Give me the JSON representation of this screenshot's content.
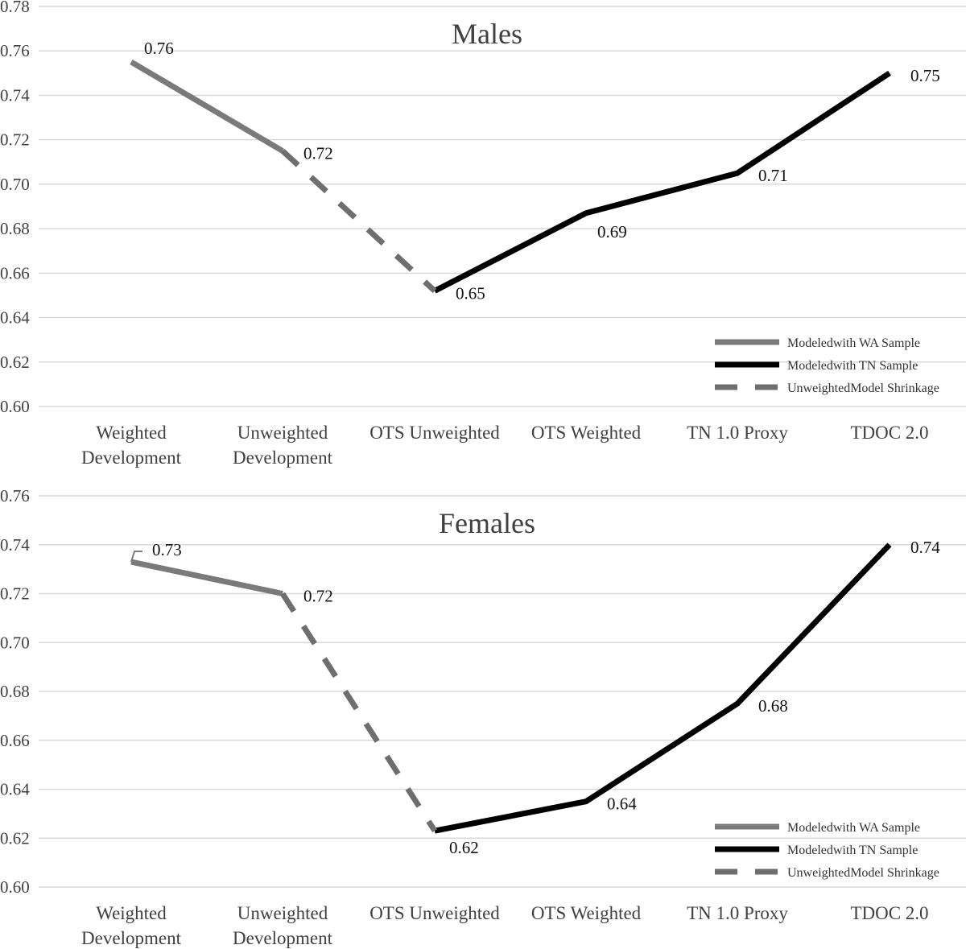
{
  "chart_data": [
    {
      "type": "line",
      "title": "Males",
      "categories": [
        [
          "Weighted",
          "Development"
        ],
        [
          "Unweighted",
          "Development"
        ],
        [
          "OTS Unweighted"
        ],
        [
          "OTS Weighted"
        ],
        [
          "TN 1.0 Proxy"
        ],
        [
          "TDOC 2.0"
        ]
      ],
      "values": [
        0.755,
        0.715,
        0.652,
        0.687,
        0.705,
        0.75
      ],
      "data_labels": [
        "0.76",
        "0.72",
        "0.65",
        "0.69",
        "0.71",
        "0.75"
      ],
      "ylim": [
        0.6,
        0.78
      ],
      "yticks": [
        "0.60",
        "0.62",
        "0.64",
        "0.66",
        "0.68",
        "0.70",
        "0.72",
        "0.74",
        "0.76",
        "0.78"
      ],
      "grid": true,
      "legend_position": "bottom-right",
      "series": [
        {
          "name": "Modeledwith WA Sample",
          "from": 0,
          "to": 1,
          "color": "#7a7a7a",
          "style": "solid"
        },
        {
          "name": "Modeledwith TN Sample",
          "from": 2,
          "to": 5,
          "color": "#000000",
          "style": "solid"
        },
        {
          "name": "UnweightedModel Shrinkage",
          "from": 1,
          "to": 2,
          "color": "#6e6e6e",
          "style": "dashed"
        }
      ]
    },
    {
      "type": "line",
      "title": "Females",
      "categories": [
        [
          "Weighted",
          "Development"
        ],
        [
          "Unweighted",
          "Development"
        ],
        [
          "OTS Unweighted"
        ],
        [
          "OTS Weighted"
        ],
        [
          "TN 1.0 Proxy"
        ],
        [
          "TDOC 2.0"
        ]
      ],
      "values": [
        0.733,
        0.72,
        0.623,
        0.635,
        0.675,
        0.74
      ],
      "data_labels": [
        "0.73",
        "0.72",
        "0.62",
        "0.64",
        "0.68",
        "0.74"
      ],
      "ylim": [
        0.6,
        0.76
      ],
      "yticks": [
        "0.60",
        "0.62",
        "0.64",
        "0.66",
        "0.68",
        "0.70",
        "0.72",
        "0.74",
        "0.76"
      ],
      "grid": true,
      "legend_position": "bottom-right",
      "series": [
        {
          "name": "Modeledwith WA Sample",
          "from": 0,
          "to": 1,
          "color": "#7a7a7a",
          "style": "solid"
        },
        {
          "name": "Modeledwith TN Sample",
          "from": 2,
          "to": 5,
          "color": "#000000",
          "style": "solid"
        },
        {
          "name": "UnweightedModel Shrinkage",
          "from": 1,
          "to": 2,
          "color": "#6e6e6e",
          "style": "dashed"
        }
      ]
    }
  ]
}
